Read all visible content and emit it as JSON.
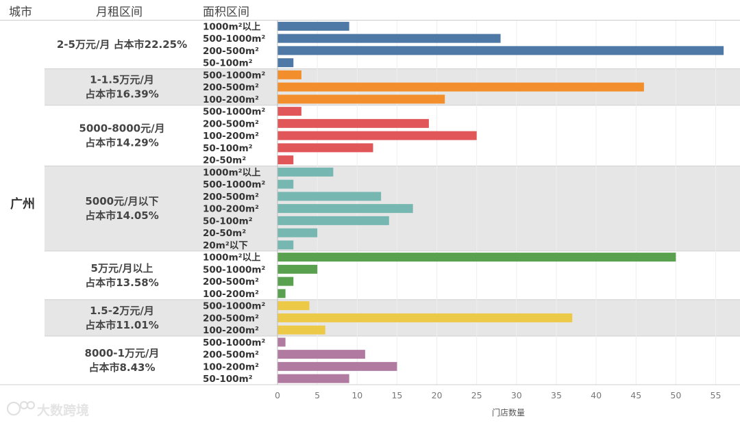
{
  "chart_data": {
    "type": "bar",
    "orientation": "horizontal",
    "columns": {
      "city": "城市",
      "rent": "月租区间",
      "area": "面积区间"
    },
    "city": "广州",
    "xlabel": "门店数量",
    "xlim": [
      0,
      57
    ],
    "xticks": [
      0,
      5,
      10,
      15,
      20,
      25,
      30,
      35,
      40,
      45,
      50,
      55
    ],
    "groups": [
      {
        "label": "2-5万元/月  占本市22.25%",
        "color": "#4e79a7",
        "bars": [
          {
            "category": "1000m²以上",
            "value": 9
          },
          {
            "category": "500-1000m²",
            "value": 28
          },
          {
            "category": "200-500m²",
            "value": 56
          },
          {
            "category": "50-100m²",
            "value": 2
          }
        ]
      },
      {
        "label": "1-1.5万元/月\n占本市16.39%",
        "color": "#f28e2b",
        "bars": [
          {
            "category": "500-1000m²",
            "value": 3
          },
          {
            "category": "200-500m²",
            "value": 46
          },
          {
            "category": "100-200m²",
            "value": 21
          }
        ]
      },
      {
        "label": "5000-8000元/月\n占本市14.29%",
        "color": "#e15759",
        "bars": [
          {
            "category": "500-1000m²",
            "value": 3
          },
          {
            "category": "200-500m²",
            "value": 19
          },
          {
            "category": "100-200m²",
            "value": 25
          },
          {
            "category": "50-100m²",
            "value": 12
          },
          {
            "category": "20-50m²",
            "value": 2
          }
        ]
      },
      {
        "label": "5000元/月以下\n占本市14.05%",
        "color": "#76b7b2",
        "bars": [
          {
            "category": "1000m²以上",
            "value": 7
          },
          {
            "category": "500-1000m²",
            "value": 2
          },
          {
            "category": "200-500m²",
            "value": 13
          },
          {
            "category": "100-200m²",
            "value": 17
          },
          {
            "category": "50-100m²",
            "value": 14
          },
          {
            "category": "20-50m²",
            "value": 5
          },
          {
            "category": "20m²以下",
            "value": 2
          }
        ]
      },
      {
        "label": "5万元/月以上\n占本市13.58%",
        "color": "#59a14f",
        "bars": [
          {
            "category": "1000m²以上",
            "value": 50
          },
          {
            "category": "500-1000m²",
            "value": 5
          },
          {
            "category": "200-500m²",
            "value": 2
          },
          {
            "category": "100-200m²",
            "value": 1
          }
        ]
      },
      {
        "label": "1.5-2万元/月\n占本市11.01%",
        "color": "#edc948",
        "bars": [
          {
            "category": "500-1000m²",
            "value": 4
          },
          {
            "category": "200-500m²",
            "value": 37
          },
          {
            "category": "100-200m²",
            "value": 6
          }
        ]
      },
      {
        "label": "8000-1万元/月\n占本市8.43%",
        "color": "#b07aa1",
        "bars": [
          {
            "category": "500-1000m²",
            "value": 1
          },
          {
            "category": "200-500m²",
            "value": 11
          },
          {
            "category": "100-200m²",
            "value": 15
          },
          {
            "category": "50-100m²",
            "value": 9
          }
        ]
      }
    ]
  },
  "watermark": "大数跨境"
}
